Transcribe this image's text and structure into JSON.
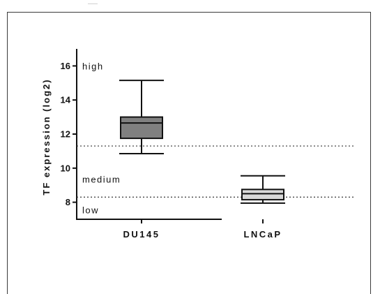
{
  "chart_data": {
    "type": "box",
    "ylabel": "TF expression (log2)",
    "ylim": [
      7,
      17
    ],
    "yticks": [
      8,
      10,
      12,
      14,
      16
    ],
    "categories": [
      "DU145",
      "LNCaP"
    ],
    "boxes": [
      {
        "category": "DU145",
        "min": 10.85,
        "q1": 11.75,
        "median": 12.65,
        "q3": 13.0,
        "max": 15.15,
        "color": "#808080"
      },
      {
        "category": "LNCaP",
        "min": 7.95,
        "q1": 8.15,
        "median": 8.5,
        "q3": 8.75,
        "max": 9.55,
        "color": "#d9d9d9"
      }
    ],
    "reference_lines": [
      {
        "y": 11.3,
        "style": "dotted"
      },
      {
        "y": 8.3,
        "style": "dotted"
      }
    ],
    "annotations": [
      {
        "text": "high",
        "y": 16.0
      },
      {
        "text": "medium",
        "y": 9.35
      },
      {
        "text": "low",
        "y": 7.55
      }
    ]
  }
}
